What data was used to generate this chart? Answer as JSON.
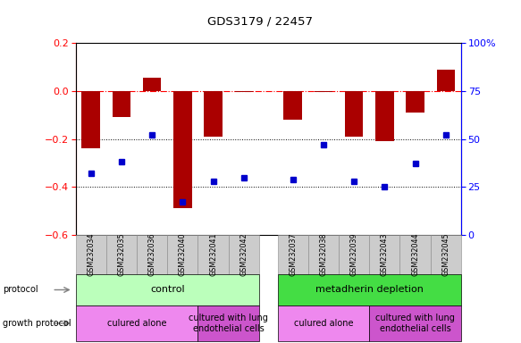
{
  "title": "GDS3179 / 22457",
  "samples": [
    "GSM232034",
    "GSM232035",
    "GSM232036",
    "GSM232040",
    "GSM232041",
    "GSM232042",
    "GSM232037",
    "GSM232038",
    "GSM232039",
    "GSM232043",
    "GSM232044",
    "GSM232045"
  ],
  "log2_ratio": [
    -0.24,
    -0.11,
    0.055,
    -0.49,
    -0.19,
    -0.005,
    -0.12,
    -0.005,
    -0.19,
    -0.21,
    -0.09,
    0.09
  ],
  "percentile": [
    32,
    38,
    52,
    17,
    28,
    30,
    29,
    47,
    28,
    25,
    37,
    52
  ],
  "bar_color": "#aa0000",
  "square_color": "#0000cc",
  "ylim_left": [
    -0.6,
    0.2
  ],
  "ylim_right": [
    0,
    100
  ],
  "yticks_left": [
    -0.6,
    -0.4,
    -0.2,
    0.0,
    0.2
  ],
  "yticks_right": [
    0,
    25,
    50,
    75,
    100
  ],
  "dotted_lines": [
    -0.2,
    -0.4
  ],
  "protocol_groups": [
    {
      "label": "control",
      "start": 0,
      "end": 6,
      "color": "#bbffbb"
    },
    {
      "label": "metadherin depletion",
      "start": 6,
      "end": 12,
      "color": "#44dd44"
    }
  ],
  "growth_groups": [
    {
      "label": "culured alone",
      "start": 0,
      "end": 4,
      "color": "#ee88ee"
    },
    {
      "label": "cultured with lung\nendothelial cells",
      "start": 4,
      "end": 6,
      "color": "#cc55cc"
    },
    {
      "label": "culured alone",
      "start": 6,
      "end": 9,
      "color": "#ee88ee"
    },
    {
      "label": "cultured with lung\nendothelial cells",
      "start": 9,
      "end": 12,
      "color": "#cc55cc"
    }
  ],
  "legend_bar_color": "#cc0000",
  "legend_sq_color": "#0000cc",
  "bar_width": 0.6,
  "xtick_bg": "#cccccc"
}
